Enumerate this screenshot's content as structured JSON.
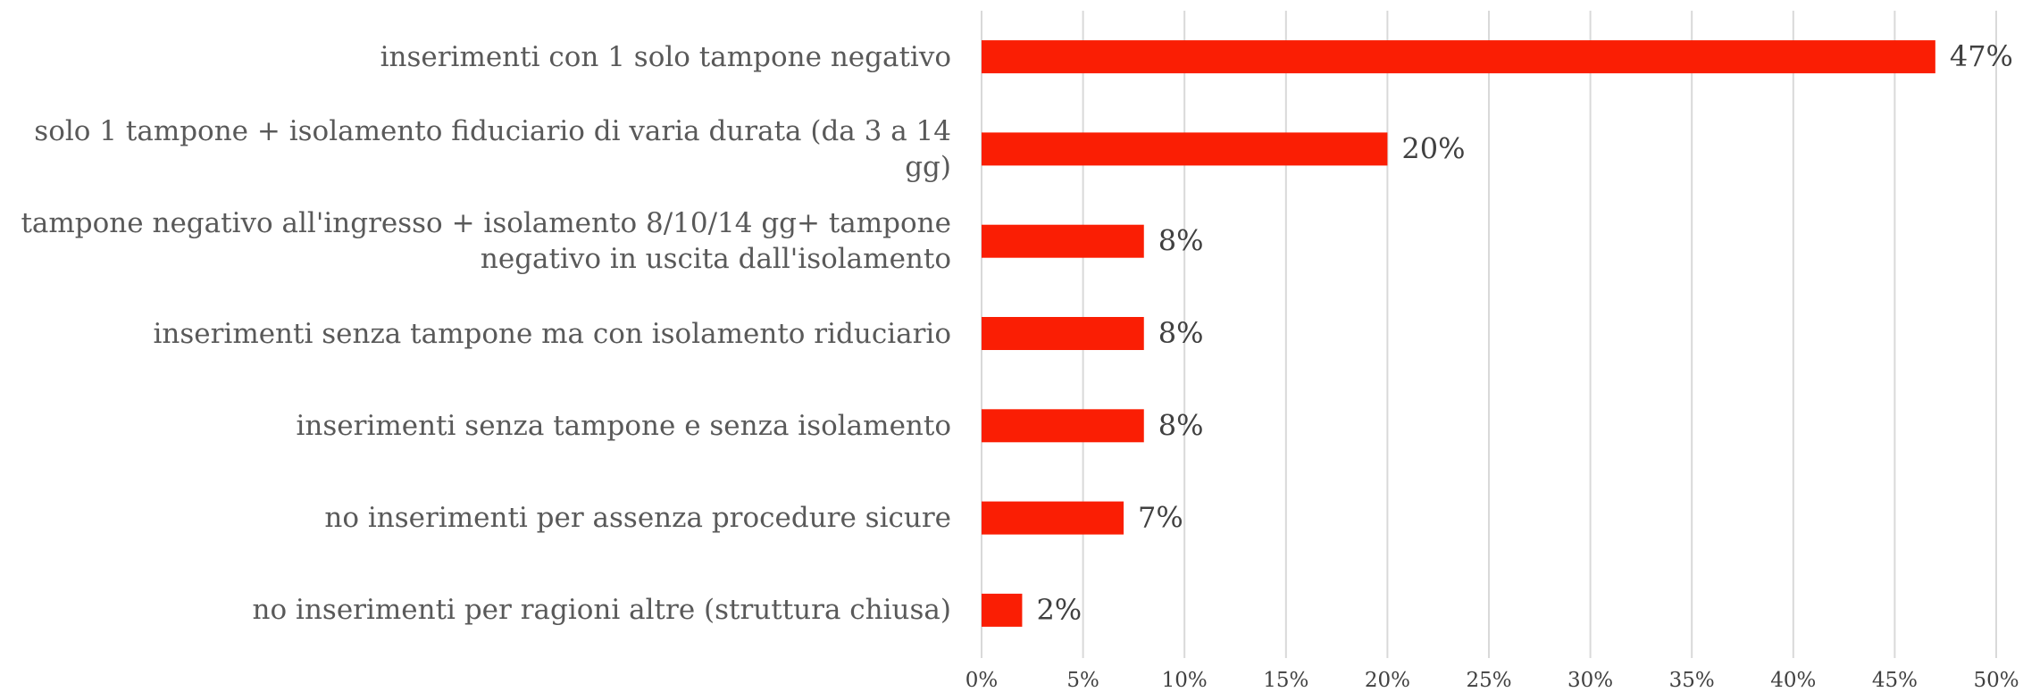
{
  "chart_data": {
    "type": "bar",
    "orientation": "horizontal",
    "categories": [
      "inserimenti con 1 solo tampone negativo",
      "solo 1 tampone + isolamento fiduciario di varia durata (da 3 a 14 gg)",
      "tampone negativo all'ingresso + isolamento 8/10/14 gg+ tampone negativo in uscita dall'isolamento",
      "inserimenti senza tampone ma con isolamento riduciario",
      "inserimenti senza tampone e senza isolamento",
      "no inserimenti per assenza procedure sicure",
      "no inserimenti per ragioni altre (struttura chiusa)"
    ],
    "values": [
      47,
      20,
      8,
      8,
      8,
      7,
      2
    ],
    "value_labels": [
      "47%",
      "20%",
      "8%",
      "8%",
      "8%",
      "7%",
      "2%"
    ],
    "color": "#fa1e04",
    "xlim": [
      0,
      50
    ],
    "xticks": [
      {
        "value": 0,
        "label": "0%"
      },
      {
        "value": 5,
        "label": "5%"
      },
      {
        "value": 10,
        "label": "10%"
      },
      {
        "value": 15,
        "label": "15%"
      },
      {
        "value": 20,
        "label": "20%"
      },
      {
        "value": 25,
        "label": "25%"
      },
      {
        "value": 30,
        "label": "30%"
      },
      {
        "value": 35,
        "label": "35%"
      },
      {
        "value": 40,
        "label": "40%"
      },
      {
        "value": 45,
        "label": "45%"
      },
      {
        "value": 50,
        "label": "50%"
      }
    ],
    "grid": true
  }
}
